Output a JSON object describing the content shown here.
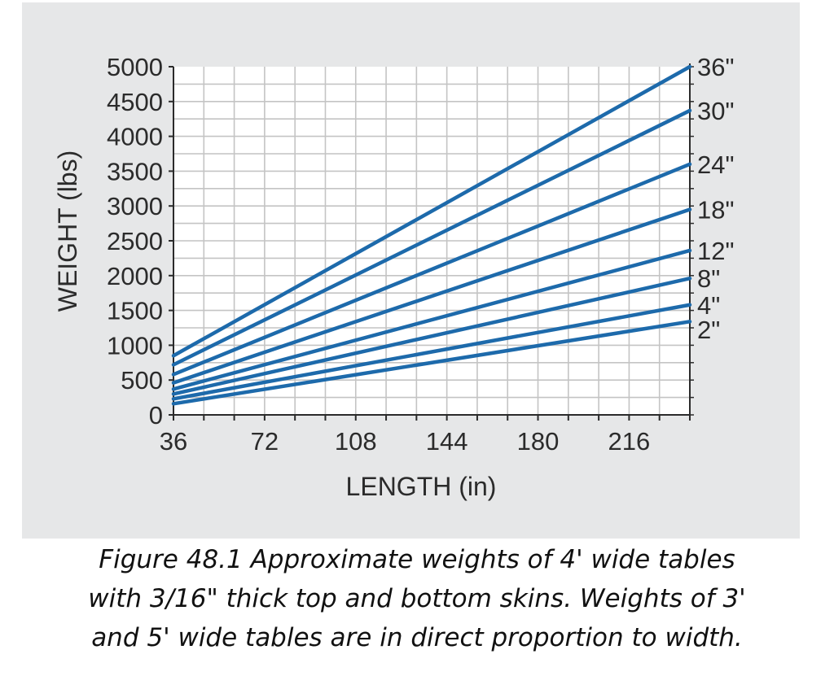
{
  "chart_data": {
    "type": "line",
    "xlabel": "LENGTH (in)",
    "ylabel": "WEIGHT (lbs)",
    "xlim": [
      36,
      240
    ],
    "ylim": [
      0,
      5000
    ],
    "x_ticks": [
      "36",
      "72",
      "108",
      "144",
      "180",
      "216"
    ],
    "y_ticks": [
      "0",
      "500",
      "1000",
      "1500",
      "2000",
      "2500",
      "3000",
      "3500",
      "4000",
      "4500",
      "5000"
    ],
    "x_grid_step": 12,
    "y_grid_step": 500,
    "grid": true,
    "line_color": "#1d6aab",
    "series": [
      {
        "name": "36\"",
        "x": [
          36,
          240
        ],
        "values": [
          850,
          5000
        ]
      },
      {
        "name": "30\"",
        "x": [
          36,
          240
        ],
        "values": [
          720,
          4370
        ]
      },
      {
        "name": "24\"",
        "x": [
          36,
          240
        ],
        "values": [
          580,
          3600
        ]
      },
      {
        "name": "18\"",
        "x": [
          36,
          240
        ],
        "values": [
          460,
          2950
        ]
      },
      {
        "name": "12\"",
        "x": [
          36,
          240
        ],
        "values": [
          370,
          2360
        ]
      },
      {
        "name": "8\"",
        "x": [
          36,
          240
        ],
        "values": [
          300,
          1960
        ]
      },
      {
        "name": "4\"",
        "x": [
          36,
          240
        ],
        "values": [
          230,
          1580
        ]
      },
      {
        "name": "2\"",
        "x": [
          36,
          240
        ],
        "values": [
          160,
          1340
        ]
      }
    ]
  },
  "caption": {
    "line1": "Figure 48.1 Approximate weights of 4' wide tables",
    "line2": "with 3/16\" thick top and bottom skins. Weights of 3'",
    "line3": "and 5' wide tables are in direct proportion to width."
  }
}
